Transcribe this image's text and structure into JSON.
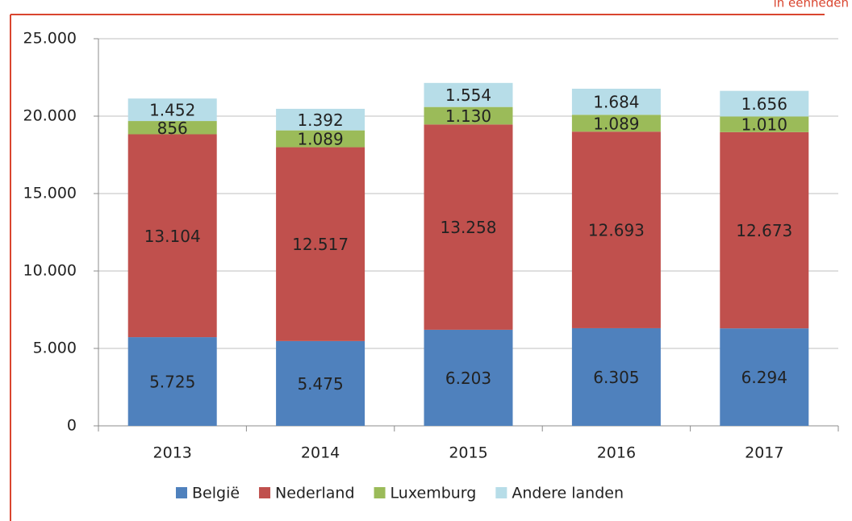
{
  "chart_data": {
    "type": "bar",
    "stacked": true,
    "note": "in eenheden",
    "categories": [
      "2013",
      "2014",
      "2015",
      "2016",
      "2017"
    ],
    "series": [
      {
        "name": "België",
        "color": "#4f81bd",
        "values": [
          5725,
          5475,
          6203,
          6305,
          6294
        ],
        "value_labels": [
          "5.725",
          "5.475",
          "6.203",
          "6.305",
          "6.294"
        ]
      },
      {
        "name": "Nederland",
        "color": "#c0504d",
        "values": [
          13104,
          12517,
          13258,
          12693,
          12673
        ],
        "value_labels": [
          "13.104",
          "12.517",
          "13.258",
          "12.693",
          "12.673"
        ]
      },
      {
        "name": "Luxemburg",
        "color": "#9bbb59",
        "values": [
          856,
          1089,
          1130,
          1089,
          1010
        ],
        "value_labels": [
          "856",
          "1.089",
          "1.130",
          "1.089",
          "1.010"
        ]
      },
      {
        "name": "Andere landen",
        "color": "#b7dde8",
        "values": [
          1452,
          1392,
          1554,
          1684,
          1656
        ],
        "value_labels": [
          "1.452",
          "1.392",
          "1.554",
          "1.684",
          "1.656"
        ]
      }
    ],
    "ylim": [
      0,
      25000
    ],
    "yticks": [
      0,
      {
        "value": 5000,
        "label": "5.000"
      },
      {
        "value": 10000,
        "label": "10.000"
      },
      {
        "value": 15000,
        "label": "15.000"
      },
      {
        "value": 20000,
        "label": "20.000"
      },
      {
        "value": 25000,
        "label": "25.000"
      }
    ],
    "grid": true,
    "legend": "bottom"
  }
}
